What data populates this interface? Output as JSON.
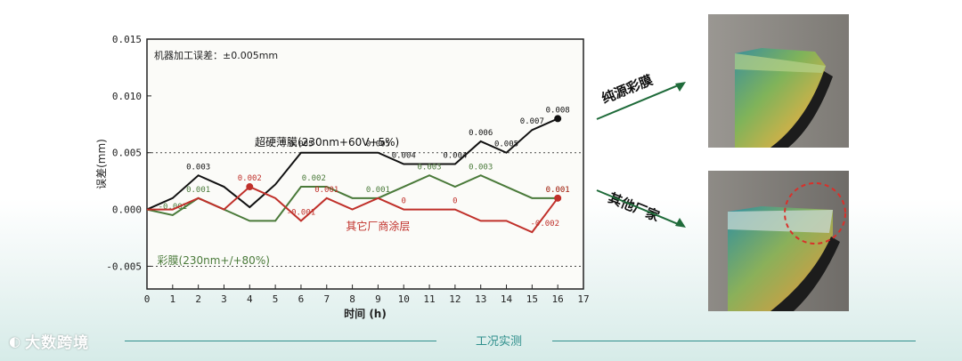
{
  "chart_data": {
    "type": "line",
    "xlabel": "时间 (h)",
    "ylabel": "误差(mm)",
    "xlim": [
      0,
      17
    ],
    "ylim": [
      -0.007,
      0.015
    ],
    "xticks": [
      "0",
      "1",
      "2",
      "3",
      "4",
      "5",
      "6",
      "7",
      "8",
      "9",
      "10",
      "11",
      "12",
      "13",
      "14",
      "15",
      "16",
      "17"
    ],
    "yticks": [
      "0.015",
      "0.010",
      "0.005",
      "0.000",
      "-0.005"
    ],
    "reference_lines": [
      0.005,
      -0.005
    ],
    "note": "机器加工误差：±0.005mm",
    "series": [
      {
        "name": "超硬薄膜(230nm+60V+5%)",
        "color": "#111111",
        "x": [
          0,
          1,
          2,
          3,
          4,
          5,
          6,
          7,
          8,
          9,
          10,
          11,
          12,
          13,
          14,
          15,
          16
        ],
        "y": [
          0,
          0.001,
          0.003,
          0.002,
          0.0002,
          0.0022,
          0.005,
          0.005,
          0.005,
          0.005,
          0.004,
          0.004,
          0.004,
          0.006,
          0.005,
          0.007,
          0.008
        ],
        "labels": [
          {
            "x": 2,
            "y": 0.003,
            "text": "0.003"
          },
          {
            "x": 6,
            "y": 0.005,
            "text": "0.005"
          },
          {
            "x": 9,
            "y": 0.005,
            "text": "0.005"
          },
          {
            "x": 10,
            "y": 0.004,
            "text": "0.004"
          },
          {
            "x": 12,
            "y": 0.004,
            "text": "0.004"
          },
          {
            "x": 13,
            "y": 0.006,
            "text": "0.006"
          },
          {
            "x": 14,
            "y": 0.005,
            "text": "0.005"
          },
          {
            "x": 15,
            "y": 0.007,
            "text": "0.007"
          },
          {
            "x": 16,
            "y": 0.008,
            "text": "0.008"
          }
        ]
      },
      {
        "name": "彩膜(230nm+/+80%)",
        "color": "#4a7a3a",
        "x": [
          0,
          1,
          2,
          3,
          4,
          5,
          6,
          7,
          8,
          9,
          10,
          11,
          12,
          13,
          14,
          15,
          16
        ],
        "y": [
          0,
          -0.0005,
          0.001,
          0,
          -0.001,
          -0.001,
          0.002,
          0.002,
          0.001,
          0.001,
          0.002,
          0.003,
          0.002,
          0.003,
          0.002,
          0.001,
          0.001
        ],
        "labels": [
          {
            "x": 1,
            "y": -0.0005,
            "text": "-0.001"
          },
          {
            "x": 2,
            "y": 0.001,
            "text": "0.001"
          },
          {
            "x": 6.5,
            "y": 0.002,
            "text": "0.002"
          },
          {
            "x": 9,
            "y": 0.001,
            "text": "0.001"
          },
          {
            "x": 11,
            "y": 0.003,
            "text": "0.003"
          },
          {
            "x": 13,
            "y": 0.003,
            "text": "0.003"
          },
          {
            "x": 16,
            "y": 0.001,
            "text": "0.001"
          }
        ]
      },
      {
        "name": "其它厂商涂层",
        "color": "#c0302a",
        "x": [
          0,
          1,
          2,
          3,
          4,
          5,
          6,
          7,
          8,
          9,
          10,
          11,
          12,
          13,
          14,
          15,
          16
        ],
        "y": [
          0,
          0,
          0.001,
          0,
          0.002,
          0.001,
          -0.001,
          0.001,
          0,
          0.001,
          0,
          0,
          0,
          -0.001,
          -0.001,
          -0.002,
          0.001
        ],
        "labels": [
          {
            "x": 4,
            "y": 0.002,
            "text": "0.002"
          },
          {
            "x": 6,
            "y": -0.001,
            "text": "-0.001"
          },
          {
            "x": 7,
            "y": 0.001,
            "text": "0.001"
          },
          {
            "x": 10,
            "y": 0,
            "text": "0"
          },
          {
            "x": 12,
            "y": 0,
            "text": "0"
          },
          {
            "x": 15.5,
            "y": -0.002,
            "text": "-0.002"
          },
          {
            "x": 16,
            "y": 0.001,
            "text": "0.001"
          }
        ]
      }
    ]
  },
  "photos": {
    "top_caption": "纯源彩膜",
    "bottom_caption": "其他厂家"
  },
  "footer": {
    "title": "工况实测",
    "logo": "大数跨境"
  }
}
